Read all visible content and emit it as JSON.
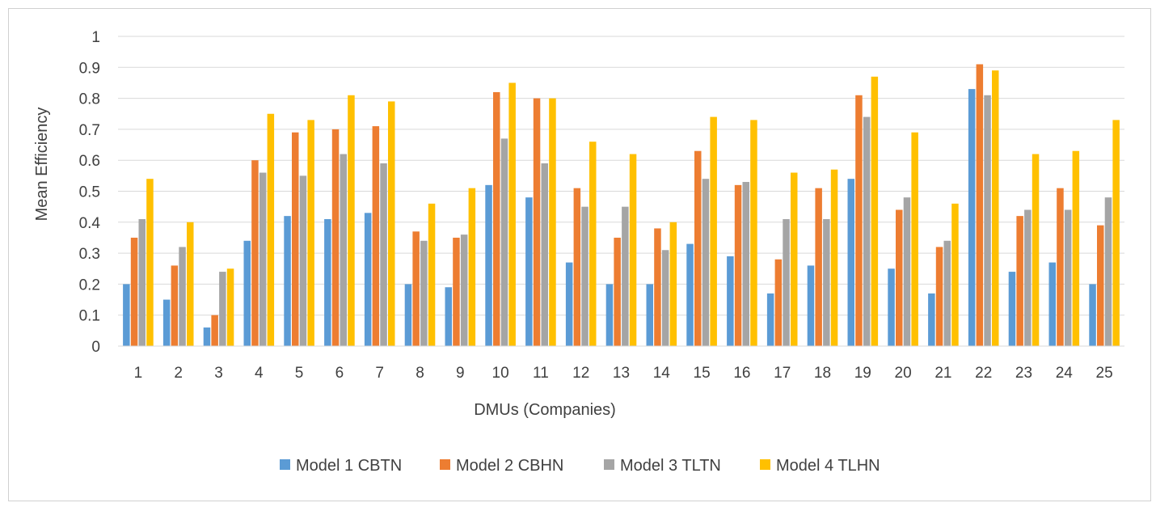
{
  "chart_data": {
    "type": "bar",
    "title": "",
    "xlabel": "DMUs (Companies)",
    "ylabel": "Mean Efficiency",
    "ylim": [
      0,
      1
    ],
    "yticks": [
      "0",
      "0.1",
      "0.2",
      "0.3",
      "0.4",
      "0.5",
      "0.6",
      "0.7",
      "0.8",
      "0.9",
      "1"
    ],
    "grid": true,
    "legend_position": "bottom",
    "categories": [
      "1",
      "2",
      "3",
      "4",
      "5",
      "6",
      "7",
      "8",
      "9",
      "10",
      "11",
      "12",
      "13",
      "14",
      "15",
      "16",
      "17",
      "18",
      "19",
      "20",
      "21",
      "22",
      "23",
      "24",
      "25"
    ],
    "series": [
      {
        "name": "Model 1 CBTN",
        "color": "#5b9bd5",
        "values": [
          0.2,
          0.15,
          0.06,
          0.34,
          0.42,
          0.41,
          0.43,
          0.2,
          0.19,
          0.52,
          0.48,
          0.27,
          0.2,
          0.2,
          0.33,
          0.29,
          0.17,
          0.26,
          0.54,
          0.25,
          0.17,
          0.83,
          0.24,
          0.27,
          0.2
        ]
      },
      {
        "name": "Model 2 CBHN",
        "color": "#ed7d31",
        "values": [
          0.35,
          0.26,
          0.1,
          0.6,
          0.69,
          0.7,
          0.71,
          0.37,
          0.35,
          0.82,
          0.8,
          0.51,
          0.35,
          0.38,
          0.63,
          0.52,
          0.28,
          0.51,
          0.81,
          0.44,
          0.32,
          0.91,
          0.42,
          0.51,
          0.39
        ]
      },
      {
        "name": "Model 3 TLTN",
        "color": "#a5a5a5",
        "values": [
          0.41,
          0.32,
          0.24,
          0.56,
          0.55,
          0.62,
          0.59,
          0.34,
          0.36,
          0.67,
          0.59,
          0.45,
          0.45,
          0.31,
          0.54,
          0.53,
          0.41,
          0.41,
          0.74,
          0.48,
          0.34,
          0.81,
          0.44,
          0.44,
          0.48
        ]
      },
      {
        "name": "Model 4 TLHN",
        "color": "#ffc000",
        "values": [
          0.54,
          0.4,
          0.25,
          0.75,
          0.73,
          0.81,
          0.79,
          0.46,
          0.51,
          0.85,
          0.8,
          0.66,
          0.62,
          0.4,
          0.74,
          0.73,
          0.56,
          0.57,
          0.87,
          0.69,
          0.46,
          0.89,
          0.62,
          0.63,
          0.73
        ]
      }
    ]
  }
}
